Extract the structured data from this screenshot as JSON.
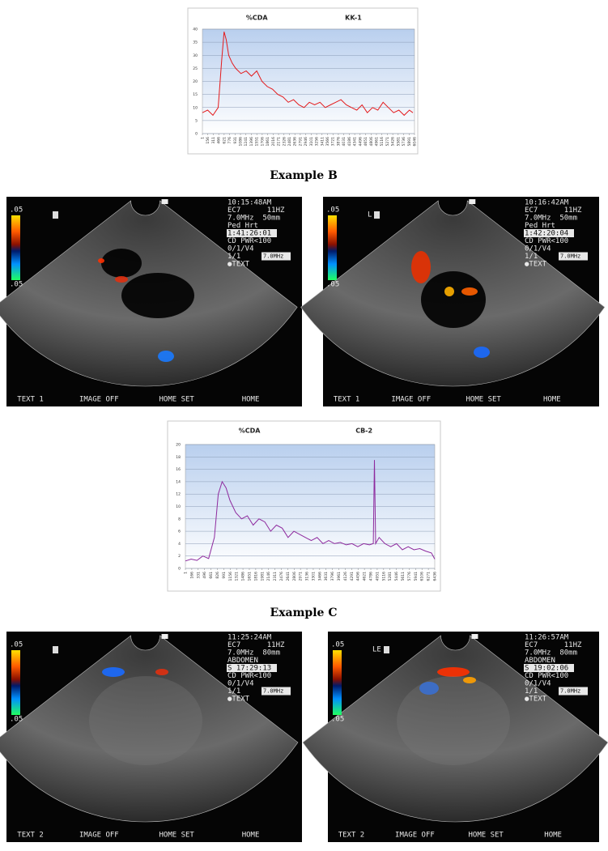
{
  "chart_data": [
    {
      "type": "line",
      "title": "%CDA",
      "subtitle": "KK-1",
      "color": "#e41a1c",
      "grid": true,
      "x": [
        1,
        150,
        300,
        450,
        550,
        620,
        680,
        750,
        850,
        950,
        1100,
        1250,
        1400,
        1550,
        1700,
        1850,
        2000,
        2150,
        2300,
        2450,
        2600,
        2750,
        2900,
        3050,
        3200,
        3350,
        3500,
        3650,
        3800,
        3950,
        4100,
        4250,
        4400,
        4550,
        4700,
        4850,
        5000,
        5150,
        5300,
        5450,
        5600,
        5750,
        5900,
        6000
      ],
      "values": [
        8,
        9,
        7,
        10,
        28,
        39,
        36,
        30,
        27,
        25,
        23,
        24,
        22,
        24,
        20,
        18,
        17,
        15,
        14,
        12,
        13,
        11,
        10,
        12,
        11,
        12,
        10,
        11,
        12,
        13,
        11,
        10,
        9,
        11,
        8,
        10,
        9,
        12,
        10,
        8,
        9,
        7,
        9,
        8
      ],
      "xlim": [
        1,
        6046
      ],
      "xticks": [
        1,
        156,
        311,
        466,
        621,
        776,
        931,
        1086,
        1241,
        1396,
        1551,
        1706,
        1861,
        2016,
        2171,
        2326,
        2481,
        2636,
        2791,
        2946,
        3101,
        3256,
        3411,
        3566,
        3721,
        3876,
        4031,
        4186,
        4341,
        4496,
        4651,
        4806,
        4961,
        5116,
        5271,
        5426,
        5581,
        5736,
        5891,
        6046
      ],
      "ylim": [
        0,
        40
      ],
      "yticks": [
        0,
        5,
        10,
        15,
        20,
        25,
        30,
        35,
        40
      ]
    },
    {
      "type": "line",
      "title": "%CDA",
      "subtitle": "CB-2",
      "color": "#8e2a9e",
      "grid": true,
      "x": [
        1,
        150,
        300,
        450,
        600,
        750,
        850,
        950,
        1050,
        1150,
        1300,
        1450,
        1600,
        1750,
        1900,
        2050,
        2200,
        2350,
        2500,
        2650,
        2800,
        2950,
        3100,
        3250,
        3400,
        3550,
        3700,
        3850,
        4000,
        4150,
        4300,
        4450,
        4600,
        4750,
        4850,
        4880,
        4910,
        5000,
        5150,
        5300,
        5450,
        5600,
        5750,
        5900,
        6050,
        6200,
        6350,
        6436
      ],
      "values": [
        1.2,
        1.5,
        1.3,
        2,
        1.6,
        5,
        12,
        14,
        13,
        11,
        9,
        8,
        8.5,
        7,
        8,
        7.5,
        6,
        7,
        6.5,
        5,
        6,
        5.5,
        5,
        4.5,
        5,
        4,
        4.5,
        4,
        4.2,
        3.8,
        4,
        3.5,
        4,
        3.8,
        4,
        17.5,
        4,
        5,
        4,
        3.5,
        4,
        3,
        3.5,
        3,
        3.2,
        2.8,
        2.5,
        1.5
      ],
      "xlim": [
        1,
        6436
      ],
      "xticks": [
        1,
        166,
        331,
        496,
        661,
        826,
        991,
        1156,
        1321,
        1486,
        1651,
        1816,
        1981,
        2146,
        2311,
        2476,
        2641,
        2806,
        2971,
        3136,
        3301,
        3466,
        3631,
        3796,
        3961,
        4126,
        4291,
        4456,
        4621,
        4786,
        4951,
        5116,
        5281,
        5446,
        5611,
        5776,
        5941,
        6106,
        6271,
        6436
      ],
      "ylim": [
        0,
        20
      ],
      "yticks": [
        0,
        2,
        4,
        6,
        8,
        10,
        12,
        14,
        16,
        18,
        20
      ]
    }
  ],
  "captions": [
    "Example B",
    "Example C"
  ],
  "images": [
    {
      "marker": "",
      "lines": [
        "10:15:48AM",
        "EC7      11HZ",
        "7.0MHz  50mm",
        "Ped Hrt",
        "1:41:26:01",
        "CD PWR<100",
        "0/1/V4",
        "1/1",
        "●TEXT"
      ],
      "freq": "7.0MHz",
      "scale": [
        ".05",
        ".05"
      ],
      "footer": [
        "TEXT 1",
        "IMAGE OFF",
        "HOME SET",
        "HOME"
      ]
    },
    {
      "marker": "L",
      "lines": [
        "10:16:42AM",
        "EC7      11HZ",
        "7.0MHz  50mm",
        "Ped Hrt",
        "1:42:20:04",
        "CD PWR<100",
        "0/1/V4",
        "1/1",
        "●TEXT"
      ],
      "freq": "7.0MHz",
      "scale": [
        ".05",
        ".05"
      ],
      "footer": [
        "TEXT 1",
        "IMAGE OFF",
        "HOME SET",
        "HOME"
      ]
    },
    {
      "marker": "",
      "lines": [
        "11:25:24AM",
        "EC7      11HZ",
        "7.0MHz  80mm",
        "ABDOMEN",
        "S 17:29:13",
        "CD PWR<100",
        "0/1/V4",
        "1/1",
        "●TEXT"
      ],
      "freq": "7.0MHz",
      "scale": [
        ".05",
        ".05"
      ],
      "footer": [
        "TEXT 2",
        "IMAGE OFF",
        "HOME SET",
        "HOME"
      ]
    },
    {
      "marker": "LE",
      "lines": [
        "11:26:57AM",
        "EC7      11HZ",
        "7.0MHz  80mm",
        "ABDOMEN",
        "S 19:02:06",
        "CD PWR<100",
        "0/1/V4",
        "1/1",
        "●TEXT"
      ],
      "freq": "7.0MHz",
      "scale": [
        ".05",
        ".05"
      ],
      "footer": [
        "TEXT 2",
        "IMAGE OFF",
        "HOME SET",
        "HOME"
      ]
    }
  ]
}
